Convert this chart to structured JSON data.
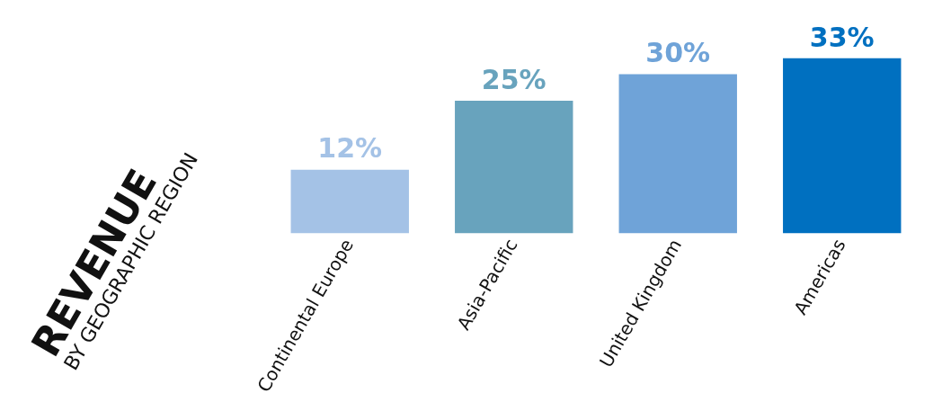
{
  "chart_data": {
    "type": "bar",
    "title": "REVENUE",
    "subtitle": "BY GEOGRAPHIC REGION",
    "categories": [
      "Continental Europe",
      "Asia-Pacific",
      "United Kingdom",
      "Americas"
    ],
    "values": [
      12,
      25,
      30,
      33
    ],
    "colors": [
      "#a4c2e6",
      "#68a3bd",
      "#6fa3d8",
      "#0070c0"
    ],
    "value_labels": [
      "12%",
      "25%",
      "30%",
      "33%"
    ],
    "grid": false,
    "legend": false
  }
}
